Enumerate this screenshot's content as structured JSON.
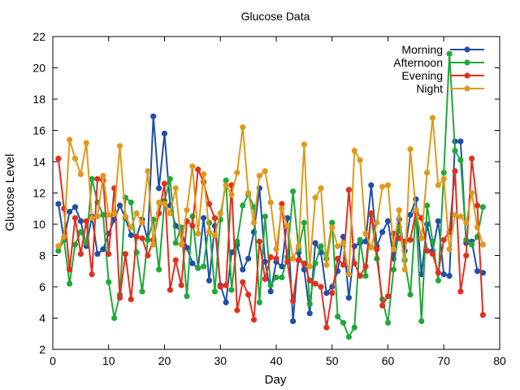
{
  "chart_data": {
    "type": "line",
    "title": "Glucose Data",
    "xlabel": "Day",
    "ylabel": "Glucose Level",
    "xlim": [
      0,
      80
    ],
    "ylim": [
      2,
      22
    ],
    "xticks": [
      "0",
      "10",
      "20",
      "30",
      "40",
      "50",
      "60",
      "70",
      "80"
    ],
    "yticks": [
      "2",
      "4",
      "6",
      "8",
      "10",
      "12",
      "14",
      "16",
      "18",
      "20",
      "22"
    ],
    "grid": false,
    "legend_position": "top-right",
    "x": [
      1,
      2,
      3,
      4,
      5,
      6,
      7,
      8,
      9,
      10,
      11,
      12,
      13,
      14,
      15,
      16,
      17,
      18,
      19,
      20,
      21,
      22,
      23,
      24,
      25,
      26,
      27,
      28,
      29,
      30,
      31,
      32,
      33,
      34,
      35,
      36,
      37,
      38,
      39,
      40,
      41,
      42,
      43,
      44,
      45,
      46,
      47,
      48,
      49,
      50,
      51,
      52,
      53,
      54,
      55,
      56,
      57,
      58,
      59,
      60,
      61,
      62,
      63,
      64,
      65,
      66,
      67,
      68,
      69,
      70,
      71,
      72,
      73,
      74,
      75,
      76,
      77
    ],
    "series": [
      {
        "name": "Morning",
        "color": "#1f4fa8",
        "values": [
          11.3,
          9.0,
          10.8,
          11.1,
          10.2,
          8.6,
          10.5,
          8.1,
          8.4,
          9.4,
          10.3,
          11.2,
          10.4,
          9.3,
          9.2,
          10.3,
          9.0,
          16.9,
          12.3,
          15.8,
          11.2,
          9.9,
          9.5,
          8.5,
          7.5,
          7.2,
          10.4,
          6.4,
          9.9,
          6.1,
          5.0,
          8.2,
          8.7,
          7.1,
          7.8,
          9.5,
          12.3,
          7.6,
          5.7,
          7.6,
          7.3,
          10.4,
          3.8,
          8.2,
          7.1,
          4.3,
          8.8,
          8.2,
          5.6,
          6.0,
          7.0,
          9.2,
          5.3,
          8.6,
          8.8,
          8.9,
          12.5,
          8.6,
          9.5,
          10.2,
          7.8,
          10.3,
          8.3,
          10.6,
          11.6,
          6.8,
          10.0,
          8.3,
          10.2,
          6.8,
          6.7,
          15.3,
          15.3,
          8.8,
          8.9,
          7.0,
          6.9
        ]
      },
      {
        "name": "Afternoon",
        "color": "#20a83a",
        "values": [
          8.3,
          9.0,
          6.2,
          8.7,
          9.5,
          8.8,
          12.9,
          11.4,
          10.6,
          6.3,
          4.0,
          5.5,
          11.7,
          11.4,
          8.2,
          5.7,
          9.0,
          10.3,
          7.1,
          11.5,
          12.9,
          8.8,
          9.8,
          5.4,
          10.5,
          7.2,
          7.3,
          10.1,
          5.7,
          10.3,
          12.8,
          5.8,
          8.9,
          11.2,
          11.9,
          11.1,
          5.0,
          10.5,
          6.1,
          6.6,
          6.6,
          7.9,
          12.1,
          8.4,
          10.1,
          4.9,
          7.5,
          8.6,
          7.8,
          10.1,
          4.1,
          3.7,
          2.8,
          3.4,
          9.0,
          6.7,
          10.6,
          7.8,
          5.2,
          3.7,
          7.1,
          9.8,
          7.7,
          5.5,
          10.8,
          3.8,
          11.2,
          8.9,
          6.4,
          13.3,
          20.9,
          14.7,
          14.1,
          9.0,
          8.7,
          9.2,
          11.1
        ]
      },
      {
        "name": "Evening",
        "color": "#e0301e",
        "values": [
          14.2,
          11.0,
          7.1,
          10.4,
          8.1,
          10.2,
          6.8,
          12.9,
          12.8,
          8.1,
          12.3,
          5.3,
          8.1,
          5.2,
          9.2,
          9.1,
          8.0,
          9.0,
          10.7,
          12.6,
          5.8,
          7.7,
          6.1,
          10.2,
          9.9,
          13.5,
          12.7,
          11.3,
          10.4,
          6.0,
          6.1,
          12.5,
          4.5,
          6.3,
          5.5,
          3.9,
          8.9,
          6.5,
          7.9,
          7.8,
          11.3,
          7.6,
          5.1,
          7.7,
          7.5,
          6.4,
          6.2,
          6.0,
          3.4,
          5.6,
          7.8,
          7.4,
          12.2,
          7.5,
          6.7,
          7.3,
          10.7,
          8.4,
          4.8,
          5.4,
          9.4,
          9.1,
          8.9,
          9.0,
          10.8,
          10.4,
          8.3,
          8.1,
          6.9,
          9.0,
          9.5,
          13.4,
          5.7,
          8.0,
          14.2,
          11.2,
          4.2
        ]
      },
      {
        "name": "Night",
        "color": "#e09a1a",
        "values": [
          8.6,
          9.2,
          15.4,
          14.2,
          13.2,
          15.2,
          10.4,
          10.5,
          13.1,
          10.6,
          10.7,
          15.0,
          10.5,
          9.8,
          10.7,
          10.1,
          13.4,
          8.7,
          11.4,
          11.3,
          10.7,
          12.3,
          8.7,
          10.9,
          13.7,
          9.4,
          13.2,
          9.5,
          9.3,
          10.7,
          12.5,
          11.9,
          13.3,
          16.2,
          12.0,
          10.1,
          13.1,
          13.4,
          11.4,
          8.4,
          11.0,
          9.9,
          7.8,
          8.6,
          15.1,
          7.3,
          11.7,
          12.3,
          7.4,
          9.8,
          8.6,
          8.8,
          6.8,
          14.7,
          14.1,
          9.4,
          8.5,
          10.1,
          12.4,
          12.5,
          8.4,
          10.9,
          7.1,
          14.8,
          10.9,
          9.1,
          13.3,
          16.8,
          12.5,
          12.9,
          8.4,
          10.6,
          10.5,
          10.1,
          12.0,
          9.8,
          8.7
        ]
      }
    ]
  }
}
